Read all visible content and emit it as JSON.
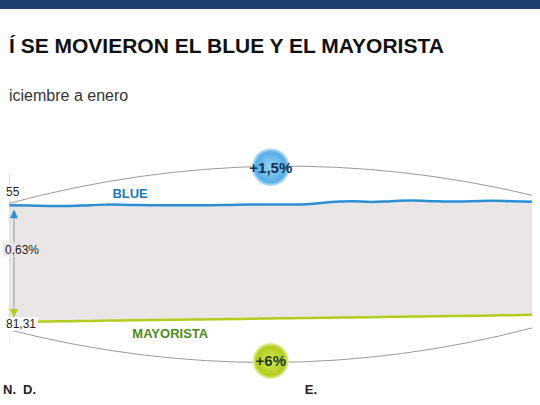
{
  "chart_data": {
    "type": "line",
    "title": "Í SE MOVIERON EL BLUE Y EL MAYORISTA",
    "subtitle": "iciembre a enero",
    "categories": [
      "N.",
      "D.",
      null,
      null,
      null,
      null,
      null,
      null,
      null,
      null,
      null,
      null,
      null,
      null,
      null,
      "E.",
      null,
      null,
      null,
      null,
      null,
      null,
      null,
      null,
      null,
      null,
      null
    ],
    "series": [
      {
        "name": "BLUE",
        "color": "#2b8fd3",
        "values": [
          355,
          354.5,
          354,
          354,
          355,
          356,
          355.5,
          355,
          355,
          355,
          355,
          355.5,
          356,
          356,
          356,
          357,
          360,
          361,
          360,
          361,
          362,
          361,
          360.5,
          361,
          361.5,
          361,
          360.3
        ]
      },
      {
        "name": "MAYORISTA",
        "color": "#b3cc1e",
        "values": [
          181.31,
          181.7,
          182.1,
          182.5,
          182.9,
          183.3,
          183.7,
          184.1,
          184.5,
          184.9,
          185.3,
          185.7,
          186.1,
          186.5,
          186.9,
          187.3,
          187.7,
          188.1,
          188.5,
          188.9,
          189.3,
          189.7,
          190.1,
          190.5,
          190.9,
          191.4,
          192.2
        ]
      }
    ],
    "annotations": [
      "+1,5%",
      "+6%",
      "55",
      "0,63%",
      "81,31"
    ],
    "ylim": [
      150,
      400
    ],
    "grid": false,
    "tick_labels": "x"
  }
}
